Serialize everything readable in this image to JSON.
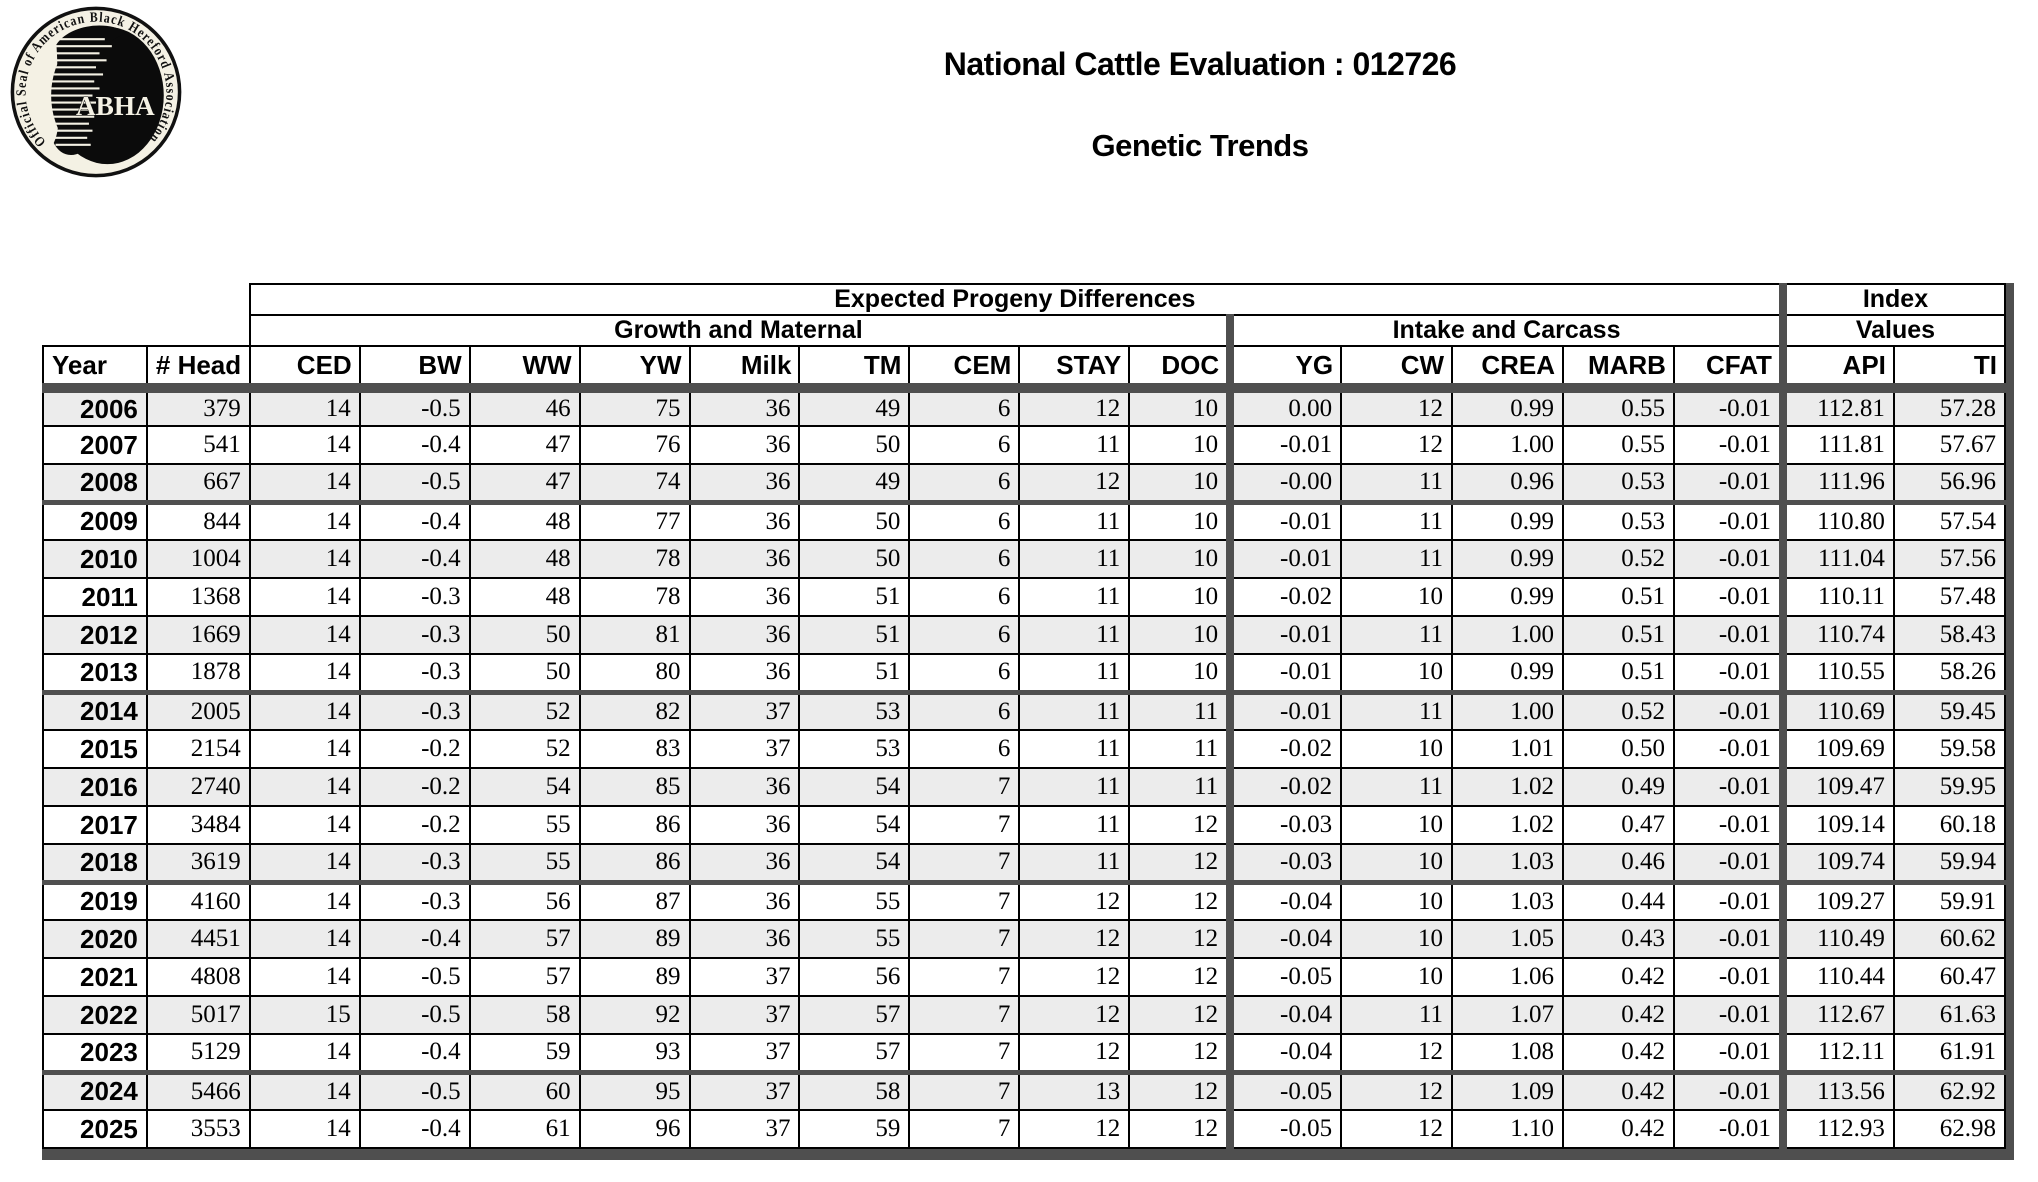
{
  "header": {
    "title_line1": "National Cattle Evaluation  : 012726",
    "title_line2": "Genetic Trends",
    "logo": {
      "ring_text": "Official Seal of American Black Hereford Association",
      "center_text": "ABHA"
    }
  },
  "table": {
    "group_headers": {
      "epd": "Expected Progeny Differences",
      "index": "Index",
      "growth_maternal": "Growth and Maternal",
      "intake_carcass": "Intake and Carcass",
      "values": "Values"
    },
    "columns": [
      "Year",
      "# Head",
      "CED",
      "BW",
      "WW",
      "YW",
      "Milk",
      "TM",
      "CEM",
      "STAY",
      "DOC",
      "YG",
      "CW",
      "CREA",
      "MARB",
      "CFAT",
      "API",
      "TI"
    ],
    "rows": [
      [
        "2006",
        "379",
        "14",
        "-0.5",
        "46",
        "75",
        "36",
        "49",
        "6",
        "12",
        "10",
        "0.00",
        "12",
        "0.99",
        "0.55",
        "-0.01",
        "112.81",
        "57.28"
      ],
      [
        "2007",
        "541",
        "14",
        "-0.4",
        "47",
        "76",
        "36",
        "50",
        "6",
        "11",
        "10",
        "-0.01",
        "12",
        "1.00",
        "0.55",
        "-0.01",
        "111.81",
        "57.67"
      ],
      [
        "2008",
        "667",
        "14",
        "-0.5",
        "47",
        "74",
        "36",
        "49",
        "6",
        "12",
        "10",
        "-0.00",
        "11",
        "0.96",
        "0.53",
        "-0.01",
        "111.96",
        "56.96"
      ],
      [
        "2009",
        "844",
        "14",
        "-0.4",
        "48",
        "77",
        "36",
        "50",
        "6",
        "11",
        "10",
        "-0.01",
        "11",
        "0.99",
        "0.53",
        "-0.01",
        "110.80",
        "57.54"
      ],
      [
        "2010",
        "1004",
        "14",
        "-0.4",
        "48",
        "78",
        "36",
        "50",
        "6",
        "11",
        "10",
        "-0.01",
        "11",
        "0.99",
        "0.52",
        "-0.01",
        "111.04",
        "57.56"
      ],
      [
        "2011",
        "1368",
        "14",
        "-0.3",
        "48",
        "78",
        "36",
        "51",
        "6",
        "11",
        "10",
        "-0.02",
        "10",
        "0.99",
        "0.51",
        "-0.01",
        "110.11",
        "57.48"
      ],
      [
        "2012",
        "1669",
        "14",
        "-0.3",
        "50",
        "81",
        "36",
        "51",
        "6",
        "11",
        "10",
        "-0.01",
        "11",
        "1.00",
        "0.51",
        "-0.01",
        "110.74",
        "58.43"
      ],
      [
        "2013",
        "1878",
        "14",
        "-0.3",
        "50",
        "80",
        "36",
        "51",
        "6",
        "11",
        "10",
        "-0.01",
        "10",
        "0.99",
        "0.51",
        "-0.01",
        "110.55",
        "58.26"
      ],
      [
        "2014",
        "2005",
        "14",
        "-0.3",
        "52",
        "82",
        "37",
        "53",
        "6",
        "11",
        "11",
        "-0.01",
        "11",
        "1.00",
        "0.52",
        "-0.01",
        "110.69",
        "59.45"
      ],
      [
        "2015",
        "2154",
        "14",
        "-0.2",
        "52",
        "83",
        "37",
        "53",
        "6",
        "11",
        "11",
        "-0.02",
        "10",
        "1.01",
        "0.50",
        "-0.01",
        "109.69",
        "59.58"
      ],
      [
        "2016",
        "2740",
        "14",
        "-0.2",
        "54",
        "85",
        "36",
        "54",
        "7",
        "11",
        "11",
        "-0.02",
        "11",
        "1.02",
        "0.49",
        "-0.01",
        "109.47",
        "59.95"
      ],
      [
        "2017",
        "3484",
        "14",
        "-0.2",
        "55",
        "86",
        "36",
        "54",
        "7",
        "11",
        "12",
        "-0.03",
        "10",
        "1.02",
        "0.47",
        "-0.01",
        "109.14",
        "60.18"
      ],
      [
        "2018",
        "3619",
        "14",
        "-0.3",
        "55",
        "86",
        "36",
        "54",
        "7",
        "11",
        "12",
        "-0.03",
        "10",
        "1.03",
        "0.46",
        "-0.01",
        "109.74",
        "59.94"
      ],
      [
        "2019",
        "4160",
        "14",
        "-0.3",
        "56",
        "87",
        "36",
        "55",
        "7",
        "12",
        "12",
        "-0.04",
        "10",
        "1.03",
        "0.44",
        "-0.01",
        "109.27",
        "59.91"
      ],
      [
        "2020",
        "4451",
        "14",
        "-0.4",
        "57",
        "89",
        "36",
        "55",
        "7",
        "12",
        "12",
        "-0.04",
        "10",
        "1.05",
        "0.43",
        "-0.01",
        "110.49",
        "60.62"
      ],
      [
        "2021",
        "4808",
        "14",
        "-0.5",
        "57",
        "89",
        "37",
        "56",
        "7",
        "12",
        "12",
        "-0.05",
        "10",
        "1.06",
        "0.42",
        "-0.01",
        "110.44",
        "60.47"
      ],
      [
        "2022",
        "5017",
        "15",
        "-0.5",
        "58",
        "92",
        "37",
        "57",
        "7",
        "12",
        "12",
        "-0.04",
        "11",
        "1.07",
        "0.42",
        "-0.01",
        "112.67",
        "61.63"
      ],
      [
        "2023",
        "5129",
        "14",
        "-0.4",
        "59",
        "93",
        "37",
        "57",
        "7",
        "12",
        "12",
        "-0.04",
        "12",
        "1.08",
        "0.42",
        "-0.01",
        "112.11",
        "61.91"
      ],
      [
        "2024",
        "5466",
        "14",
        "-0.5",
        "60",
        "95",
        "37",
        "58",
        "7",
        "13",
        "12",
        "-0.05",
        "12",
        "1.09",
        "0.42",
        "-0.01",
        "113.56",
        "62.92"
      ],
      [
        "2025",
        "3553",
        "14",
        "-0.4",
        "61",
        "96",
        "37",
        "59",
        "7",
        "12",
        "12",
        "-0.05",
        "12",
        "1.10",
        "0.42",
        "-0.01",
        "112.93",
        "62.98"
      ]
    ]
  },
  "colors": {
    "row_alt": "#ececec",
    "separator": "#4f4f4f",
    "border": "#000000",
    "seal_bg": "#f4f1e4"
  }
}
